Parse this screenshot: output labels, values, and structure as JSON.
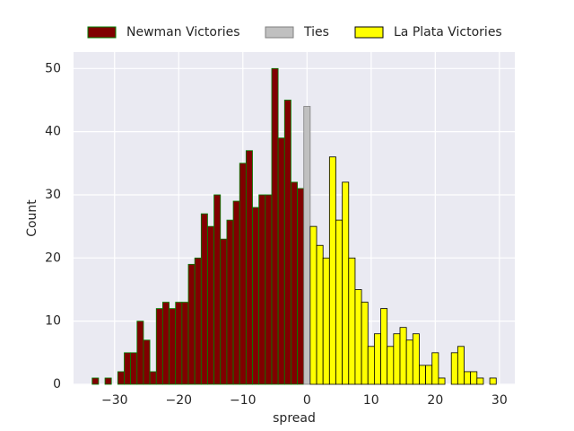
{
  "chart_data": {
    "type": "histogram",
    "xlabel": "spread",
    "ylabel": "Count",
    "xlim": [
      -36.4,
      32.4
    ],
    "ylim": [
      0,
      52.6
    ],
    "xticks": [
      {
        "value": -30,
        "label": "−30"
      },
      {
        "value": -20,
        "label": "−20"
      },
      {
        "value": -10,
        "label": "−10"
      },
      0,
      10,
      20,
      30
    ],
    "yticks": [
      0,
      10,
      20,
      30,
      40,
      50
    ],
    "grid": true,
    "legend": "top",
    "series": [
      {
        "name": "Newman Victories",
        "color": "#800000",
        "edgecolor": "#008000",
        "bins": [
          -33.5,
          -32.5,
          -31.5,
          -30.5,
          -29.5,
          -28.5,
          -27.5,
          -26.5,
          -25.5,
          -24.5,
          -23.5,
          -22.5,
          -21.5,
          -20.5,
          -19.5,
          -18.5,
          -17.5,
          -16.5,
          -15.5,
          -14.5,
          -13.5,
          -12.5,
          -11.5,
          -10.5,
          -9.5,
          -8.5,
          -7.5,
          -6.5,
          -5.5,
          -4.5,
          -3.5,
          -2.5,
          -1.5,
          -0.5
        ],
        "values": [
          1,
          0,
          1,
          0,
          2,
          5,
          5,
          10,
          7,
          2,
          12,
          13,
          12,
          13,
          13,
          19,
          20,
          27,
          25,
          30,
          23,
          26,
          29,
          35,
          37,
          28,
          30,
          30,
          50,
          39,
          45,
          32,
          31
        ]
      },
      {
        "name": "Ties",
        "color": "#c0c0c0",
        "edgecolor": "#808080",
        "bins": [
          -0.5,
          0.5
        ],
        "values": [
          44
        ]
      },
      {
        "name": "La Plata Victories",
        "color": "#ffff00",
        "edgecolor": "#000000",
        "bins": [
          0.5,
          1.5,
          2.5,
          3.5,
          4.5,
          5.5,
          6.5,
          7.5,
          8.5,
          9.5,
          10.5,
          11.5,
          12.5,
          13.5,
          14.5,
          15.5,
          16.5,
          17.5,
          18.5,
          19.5,
          20.5,
          21.5,
          22.5,
          23.5,
          24.5,
          25.5,
          26.5,
          27.5,
          28.5,
          29.5
        ],
        "values": [
          25,
          22,
          20,
          36,
          26,
          32,
          20,
          15,
          13,
          6,
          8,
          12,
          6,
          8,
          9,
          7,
          8,
          3,
          3,
          5,
          1,
          0,
          5,
          6,
          2,
          2,
          1,
          0,
          1
        ]
      }
    ]
  }
}
